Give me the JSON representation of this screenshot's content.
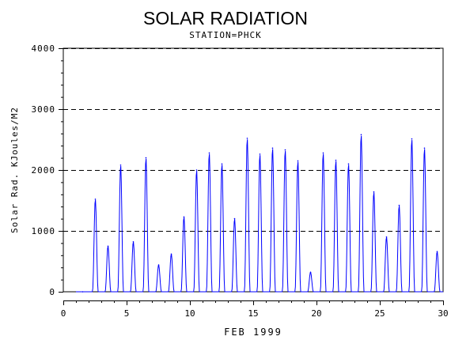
{
  "chart_data": {
    "type": "line",
    "title": "SOLAR RADIATION",
    "subtitle": "STATION=PHCK",
    "xlabel": "FEB 1999",
    "ylabel": "Solar Rad. KJoules/M2",
    "xlim": [
      0,
      30
    ],
    "ylim": [
      0,
      4000
    ],
    "x_ticks": [
      0,
      5,
      10,
      15,
      20,
      25,
      30
    ],
    "y_ticks": [
      0,
      1000,
      2000,
      3000,
      4000
    ],
    "grid": "horizontal-dashed",
    "line_color": "#0000ff",
    "daily_peaks": [
      {
        "day": 1,
        "peak": 0
      },
      {
        "day": 2,
        "peak": 1520
      },
      {
        "day": 3,
        "peak": 750
      },
      {
        "day": 4,
        "peak": 2080
      },
      {
        "day": 5,
        "peak": 820
      },
      {
        "day": 6,
        "peak": 2200
      },
      {
        "day": 7,
        "peak": 440
      },
      {
        "day": 8,
        "peak": 620
      },
      {
        "day": 9,
        "peak": 1230
      },
      {
        "day": 10,
        "peak": 2000
      },
      {
        "day": 11,
        "peak": 2280
      },
      {
        "day": 12,
        "peak": 2100
      },
      {
        "day": 13,
        "peak": 1200
      },
      {
        "day": 14,
        "peak": 2520
      },
      {
        "day": 15,
        "peak": 2260
      },
      {
        "day": 16,
        "peak": 2360
      },
      {
        "day": 17,
        "peak": 2330
      },
      {
        "day": 18,
        "peak": 2150
      },
      {
        "day": 19,
        "peak": 320
      },
      {
        "day": 20,
        "peak": 2280
      },
      {
        "day": 21,
        "peak": 2160
      },
      {
        "day": 22,
        "peak": 2100
      },
      {
        "day": 23,
        "peak": 2580
      },
      {
        "day": 24,
        "peak": 1640
      },
      {
        "day": 25,
        "peak": 900
      },
      {
        "day": 26,
        "peak": 1420
      },
      {
        "day": 27,
        "peak": 2510
      },
      {
        "day": 28,
        "peak": 2360
      },
      {
        "day": 29,
        "peak": 660
      }
    ]
  }
}
